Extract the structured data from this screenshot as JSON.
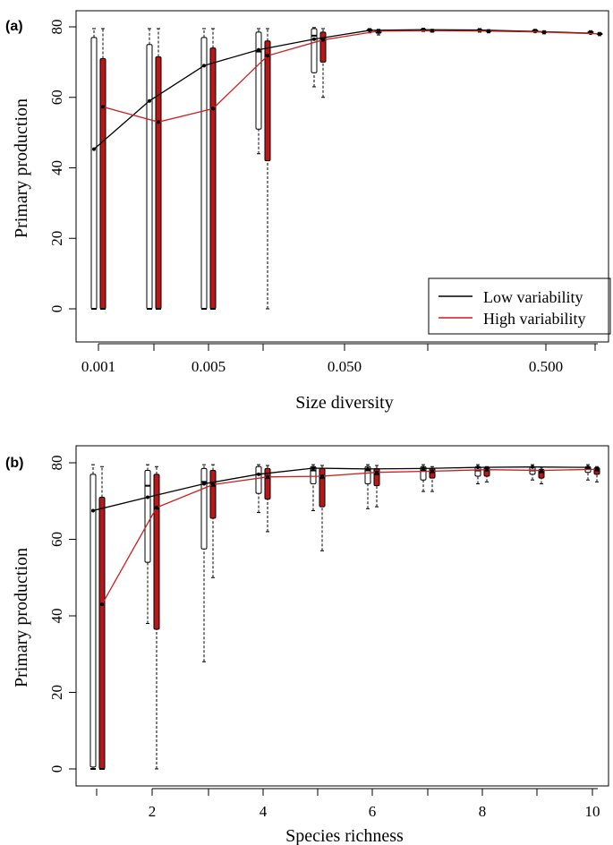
{
  "chart_data": [
    {
      "panel_label": "(a)",
      "type": "box+line",
      "xlabel": "Size diversity",
      "ylabel": "Primary production",
      "x_scale": "log",
      "x_ticks": [
        "0.001",
        "0.005",
        "0.050",
        "0.500"
      ],
      "y_ticks": [
        "0",
        "20",
        "40",
        "60",
        "80"
      ],
      "ylim": [
        -2,
        83
      ],
      "legend": {
        "position": "bottom-right",
        "entries": [
          {
            "name": "Low variability",
            "color": "#000000"
          },
          {
            "name": "High variability",
            "color": "#cc1f1f"
          }
        ]
      },
      "x": [
        0.001,
        0.0025,
        0.005,
        0.01,
        0.025,
        0.06,
        0.15,
        0.32,
        0.6,
        0.9
      ],
      "series": [
        {
          "name": "Low variability",
          "color": "#000000",
          "box_fill": "#ffffff",
          "means": [
            45.3,
            59.0,
            69.0,
            73.5,
            76.5,
            79.0,
            79.2,
            79.1,
            78.7,
            78.2
          ],
          "boxes": [
            [
              0,
              0,
              0,
              77,
              79.5
            ],
            [
              0,
              0,
              0,
              75,
              79.5
            ],
            [
              0,
              0,
              0,
              77,
              79.5
            ],
            [
              44,
              51,
              73,
              78.5,
              79.5
            ],
            [
              63,
              67,
              77.5,
              79.5,
              79.8
            ],
            [
              78.3,
              78.8,
              79.0,
              79.3,
              79.5
            ],
            [
              78.7,
              79.0,
              79.2,
              79.4,
              79.6
            ],
            [
              78.5,
              78.8,
              79.1,
              79.3,
              79.5
            ],
            [
              78.4,
              78.7,
              78.9,
              79.1,
              79.3
            ],
            [
              78.0,
              78.3,
              78.5,
              78.7,
              78.9
            ]
          ]
        },
        {
          "name": "High variability",
          "color": "#cc1f1f",
          "box_fill": "#b81818",
          "means": [
            57.3,
            53.0,
            56.8,
            71.8,
            76.3,
            78.8,
            78.9,
            78.8,
            78.5,
            78.0
          ],
          "boxes": [
            [
              0,
              0,
              0,
              71,
              79.5
            ],
            [
              0,
              0,
              0,
              71.5,
              79.5
            ],
            [
              0,
              0,
              0,
              74,
              79.5
            ],
            [
              0,
              42,
              72,
              76,
              79.5
            ],
            [
              60,
              70,
              76.5,
              78.5,
              79.5
            ],
            [
              77.7,
              78.2,
              78.6,
              79.0,
              79.3
            ],
            [
              78.5,
              78.7,
              78.9,
              79.1,
              79.3
            ],
            [
              78.3,
              78.6,
              78.8,
              79.0,
              79.2
            ],
            [
              78.0,
              78.3,
              78.5,
              78.7,
              78.9
            ],
            [
              77.5,
              77.8,
              78.0,
              78.2,
              78.4
            ]
          ]
        }
      ]
    },
    {
      "panel_label": "(b)",
      "type": "box+line",
      "xlabel": "Species richness",
      "ylabel": "Primary production",
      "x_scale": "linear",
      "x_ticks": [
        "2",
        "4",
        "6",
        "8",
        "10"
      ],
      "y_ticks": [
        "0",
        "20",
        "40",
        "60",
        "80"
      ],
      "ylim": [
        -2,
        83
      ],
      "x": [
        1,
        2,
        3,
        4,
        5,
        6,
        7,
        8,
        9,
        10
      ],
      "series": [
        {
          "name": "Low variability",
          "color": "#000000",
          "box_fill": "#ffffff",
          "means": [
            67.5,
            71.0,
            74.5,
            77.0,
            78.6,
            78.4,
            78.5,
            78.8,
            78.9,
            78.8
          ],
          "boxes": [
            [
              0,
              0.5,
              0,
              77,
              79.5
            ],
            [
              38,
              54,
              74,
              78,
              79.5
            ],
            [
              28,
              57.5,
              75,
              78.5,
              79.5
            ],
            [
              67,
              72,
              77,
              79,
              79.5
            ],
            [
              67.5,
              74.5,
              78,
              79,
              79.5
            ],
            [
              68,
              74.5,
              78,
              79,
              79.5
            ],
            [
              72.5,
              75.5,
              78,
              79,
              79.5
            ],
            [
              74.5,
              76.5,
              78,
              79,
              79.5
            ],
            [
              75.5,
              77,
              78,
              79,
              79.5
            ],
            [
              75.5,
              77.5,
              78.5,
              79,
              79.5
            ]
          ]
        },
        {
          "name": "High variability",
          "color": "#cc1f1f",
          "box_fill": "#b81818",
          "means": [
            43.0,
            68.3,
            74.3,
            76.3,
            76.5,
            77.5,
            77.8,
            78.2,
            78.0,
            78.3
          ],
          "boxes": [
            [
              0,
              0,
              0,
              71,
              79
            ],
            [
              0,
              36.5,
              68,
              77,
              79
            ],
            [
              50,
              65.5,
              74,
              78,
              79.5
            ],
            [
              62,
              70.5,
              76,
              78.5,
              79.3
            ],
            [
              57,
              68.5,
              76,
              78.5,
              79.3
            ],
            [
              68.5,
              74,
              77,
              78.5,
              79.3
            ],
            [
              72.5,
              76,
              77.5,
              78.5,
              79
            ],
            [
              75,
              76.5,
              78,
              78.7,
              79
            ],
            [
              74.5,
              76,
              77.5,
              78.3,
              78.8
            ],
            [
              75,
              77,
              78,
              78.7,
              79
            ]
          ]
        }
      ]
    }
  ]
}
